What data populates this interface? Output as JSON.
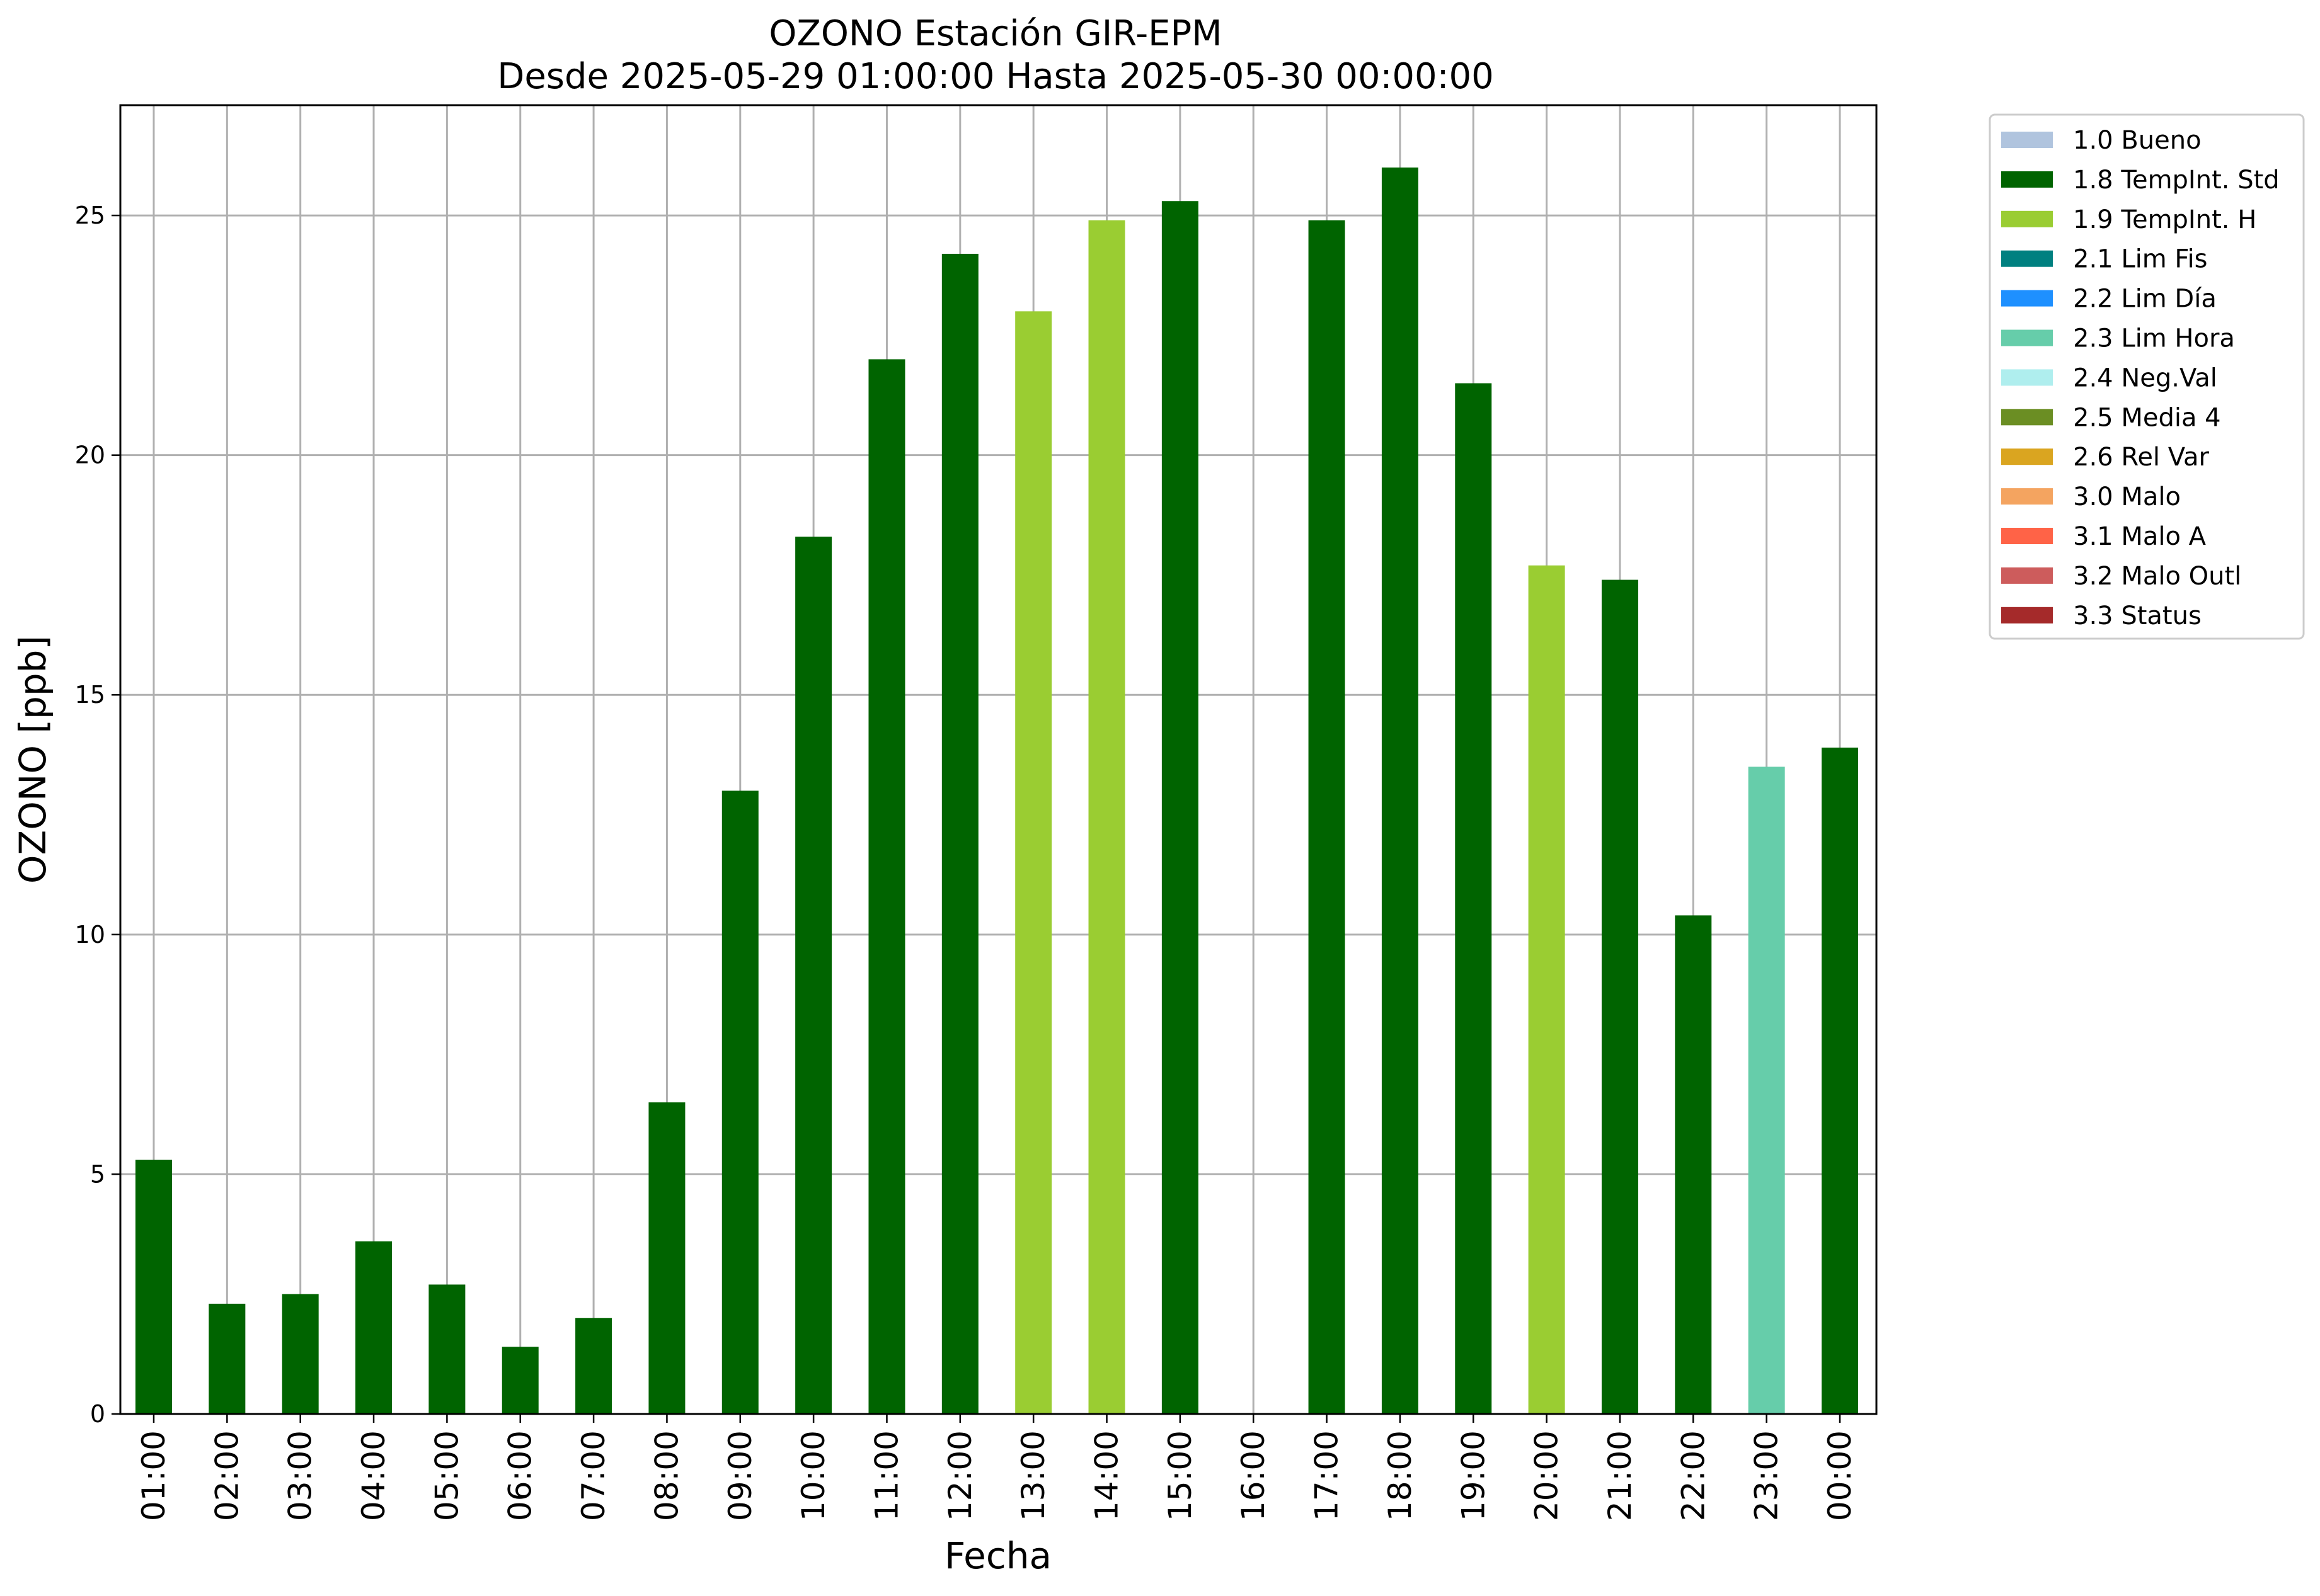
{
  "chart_data": {
    "type": "bar",
    "title": "OZONO Estación GIR-EPM",
    "subtitle": "Desde 2025-05-29 01:00:00 Hasta 2025-05-30 00:00:00",
    "xlabel": "Fecha",
    "ylabel": "OZONO [ppb]",
    "ylim": [
      0,
      27.3
    ],
    "yticks": [
      0,
      5,
      10,
      15,
      20,
      25
    ],
    "grid": true,
    "legend_position": "outside-top-right",
    "categories": [
      "01:00",
      "02:00",
      "03:00",
      "04:00",
      "05:00",
      "06:00",
      "07:00",
      "08:00",
      "09:00",
      "10:00",
      "11:00",
      "12:00",
      "13:00",
      "14:00",
      "15:00",
      "16:00",
      "17:00",
      "18:00",
      "19:00",
      "20:00",
      "21:00",
      "22:00",
      "23:00",
      "00:00"
    ],
    "values": [
      5.3,
      2.3,
      2.5,
      3.6,
      2.7,
      1.4,
      2.0,
      6.5,
      13.0,
      18.3,
      22.0,
      24.2,
      23.0,
      24.9,
      25.3,
      null,
      24.9,
      26.0,
      21.5,
      17.7,
      17.4,
      10.4,
      13.5,
      13.9
    ],
    "flags": [
      "1.8 TempInt. Std",
      "1.8 TempInt. Std",
      "1.8 TempInt. Std",
      "1.8 TempInt. Std",
      "1.8 TempInt. Std",
      "1.8 TempInt. Std",
      "1.8 TempInt. Std",
      "1.8 TempInt. Std",
      "1.8 TempInt. Std",
      "1.8 TempInt. Std",
      "1.8 TempInt. Std",
      "1.8 TempInt. Std",
      "1.9 TempInt. H",
      "1.9 TempInt. H",
      "1.8 TempInt. Std",
      null,
      "1.8 TempInt. Std",
      "1.8 TempInt. Std",
      "1.8 TempInt. Std",
      "1.9 TempInt. H",
      "1.8 TempInt. Std",
      "1.8 TempInt. Std",
      "2.3 Lim Hora",
      "1.8 TempInt. Std"
    ],
    "legend": [
      {
        "label": "1.0 Bueno",
        "color": "#b0c4de"
      },
      {
        "label": "1.8 TempInt. Std",
        "color": "#006400"
      },
      {
        "label": "1.9 TempInt. H",
        "color": "#9acd32"
      },
      {
        "label": "2.1 Lim Fis",
        "color": "#008080"
      },
      {
        "label": "2.2 Lim Día",
        "color": "#1e90ff"
      },
      {
        "label": "2.3 Lim Hora",
        "color": "#66cdaa"
      },
      {
        "label": "2.4 Neg.Val",
        "color": "#afeeee"
      },
      {
        "label": "2.5 Media 4",
        "color": "#6b8e23"
      },
      {
        "label": "2.6 Rel Var",
        "color": "#daa520"
      },
      {
        "label": "3.0 Malo",
        "color": "#f4a460"
      },
      {
        "label": "3.1 Malo A",
        "color": "#ff6347"
      },
      {
        "label": "3.2 Malo Outl",
        "color": "#cd5c5c"
      },
      {
        "label": "3.3 Status",
        "color": "#a52a2a"
      }
    ]
  }
}
